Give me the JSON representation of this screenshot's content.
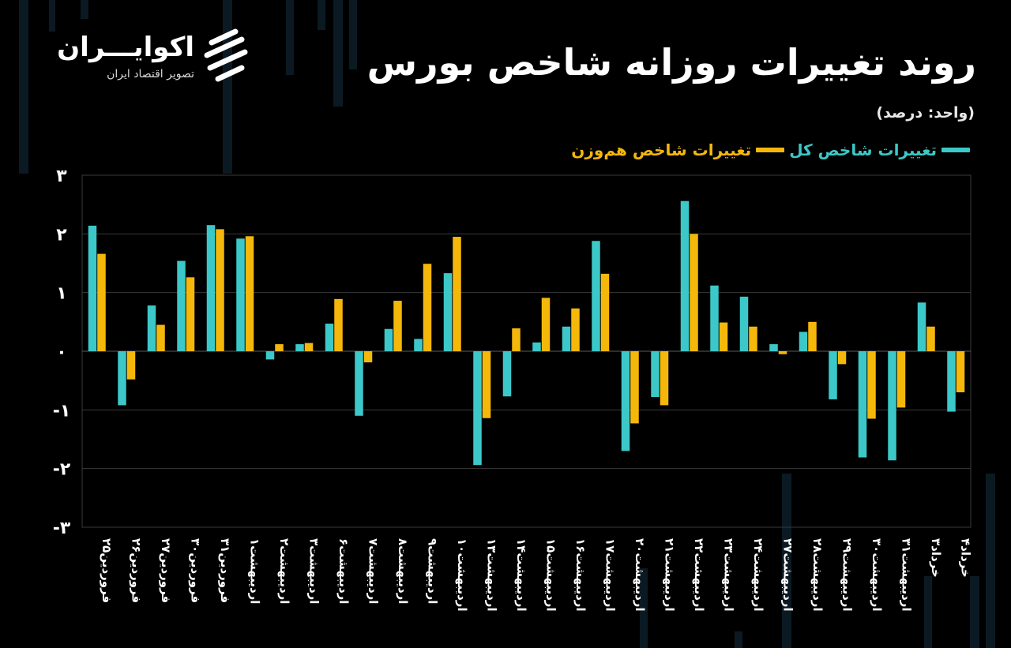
{
  "header": {
    "title": "روند تغییرات روزانه شاخص بورس",
    "unit": "(واحد: درصد)"
  },
  "brand": {
    "name": "اکوایـــران",
    "subtitle": "تصویر اقتصاد ایران",
    "logo_icon": "ekoiran-logo-icon"
  },
  "colors": {
    "background": "#000000",
    "total_index": "#3cc8c8",
    "equal_weight": "#f5b80a",
    "grid": "#3a3a3a",
    "text": "#ffffff"
  },
  "chart_data": {
    "type": "bar",
    "title": "روند تغییرات روزانه شاخص بورس",
    "ylabel": "(واحد: درصد)",
    "ylim": [
      -3,
      3
    ],
    "yticks": [
      3,
      2,
      1,
      0,
      -1,
      -2,
      -3
    ],
    "ytick_labels": [
      "۳",
      "۲",
      "۱",
      "۰",
      "-۱",
      "-۲",
      "-۳"
    ],
    "grid": true,
    "legend_position": "top-right",
    "categories": [
      "۲۵فروردین",
      "۲۶فروردین",
      "۲۷فروردین",
      "۳۰فروردین",
      "۳۱فروردین",
      "۱اردیبهشت",
      "۲اردیبهشت",
      "۳اردیبهشت",
      "۶اردیبهشت",
      "۷اردیبهشت",
      "۸اردیبهشت",
      "۹اردیبهشت",
      "۱۰اردیبهشت",
      "۱۳اردیبهشت",
      "۱۴اردیبهشت",
      "۱۵اردیبهشت",
      "۱۶اردیبهشت",
      "۱۷اردیبهشت",
      "۲۰اردیبهشت",
      "۲۱اردیبهشت",
      "۲۲اردیبهشت",
      "۲۳اردیبهشت",
      "۲۴اردیبهشت",
      "۲۷اردیبهشت",
      "۲۸اردیبهشت",
      "۲۹اردیبهشت",
      "۳۰اردیبهشت",
      "۳۱اردیبهشت",
      "۳خرداد",
      "۴خرداد"
    ],
    "series": [
      {
        "name": "تغییرات شاخص کل",
        "color": "#3cc8c8",
        "values": [
          2.14,
          -0.92,
          0.78,
          1.54,
          2.15,
          1.92,
          -0.14,
          0.12,
          0.47,
          -1.1,
          0.38,
          0.21,
          1.33,
          -1.94,
          -0.77,
          0.15,
          0.42,
          1.88,
          -1.7,
          -0.78,
          2.56,
          1.12,
          0.93,
          0.12,
          0.33,
          -0.82,
          -1.81,
          -1.86,
          0.83,
          -1.03
        ]
      },
      {
        "name": "تغییرات شاخص هم‌وزن",
        "color": "#f5b80a",
        "values": [
          1.66,
          -0.48,
          0.45,
          1.26,
          2.08,
          1.96,
          0.12,
          0.14,
          0.89,
          -0.19,
          0.86,
          1.49,
          1.95,
          -1.14,
          0.39,
          0.91,
          0.73,
          1.32,
          -1.23,
          -0.92,
          2.0,
          0.49,
          0.42,
          -0.05,
          0.5,
          -0.22,
          -1.15,
          -0.96,
          0.42,
          -0.7
        ]
      }
    ]
  }
}
